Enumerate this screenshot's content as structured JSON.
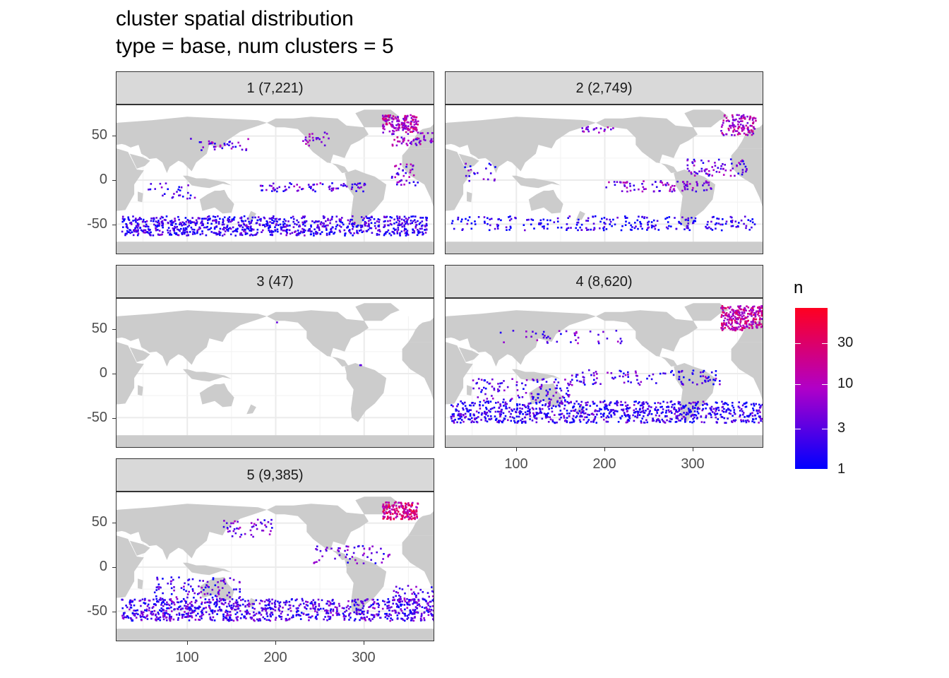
{
  "title_line1": "cluster spatial distribution",
  "title_line2": "type = base, num clusters = 5",
  "chart_data": {
    "type": "heatmap",
    "facets": [
      {
        "cluster": 1,
        "label": "1 (7,221)",
        "count": 7221
      },
      {
        "cluster": 2,
        "label": "2 (2,749)",
        "count": 2749
      },
      {
        "cluster": 3,
        "label": "3 (47)",
        "count": 47
      },
      {
        "cluster": 4,
        "label": "4 (8,620)",
        "count": 8620
      },
      {
        "cluster": 5,
        "label": "5 (9,385)",
        "count": 9385
      }
    ],
    "x_ticks": [
      "100",
      "200",
      "300"
    ],
    "x_tick_values": [
      100,
      200,
      300
    ],
    "y_ticks": [
      "50",
      "0",
      "-50"
    ],
    "y_tick_values": [
      50,
      0,
      -50
    ],
    "xlim": [
      20,
      380
    ],
    "ylim": [
      -85,
      85
    ],
    "fill_legend": {
      "title": "n",
      "scale": "log",
      "labels": [
        "1",
        "3",
        "10",
        "30"
      ],
      "values": [
        1,
        3,
        10,
        30
      ],
      "low_color": "#0000ff",
      "high_color": "#ff0020"
    },
    "land_color": "#cccccc",
    "grid": true
  }
}
